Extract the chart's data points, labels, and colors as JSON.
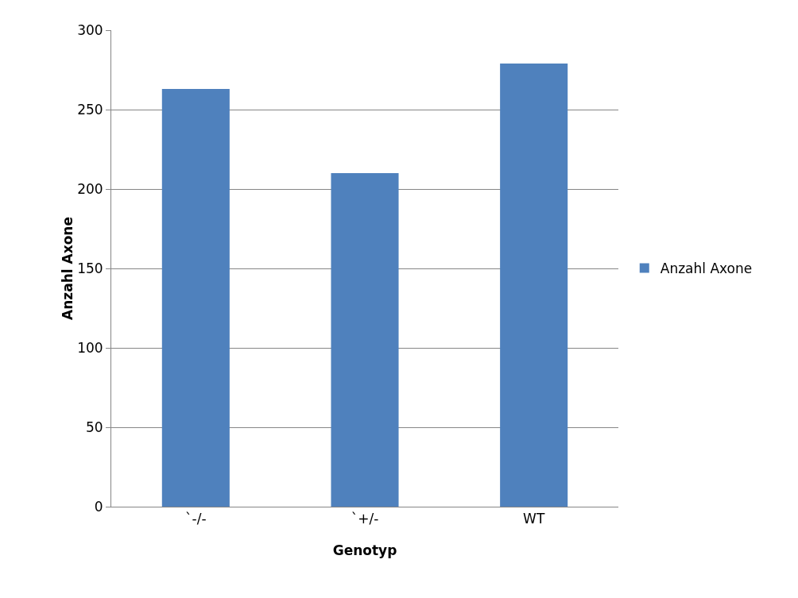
{
  "chart_data": {
    "type": "bar",
    "xlabel": "Genotyp",
    "ylabel": "Anzahl Axone",
    "categories": [
      "`-/-",
      "`+/-",
      "WT"
    ],
    "series": [
      {
        "name": "Anzahl Axone",
        "color": "#4f81bd",
        "values": [
          263,
          210,
          279
        ]
      }
    ],
    "ylim": [
      0,
      300
    ],
    "yticks": [
      0,
      50,
      100,
      150,
      200,
      250,
      300
    ],
    "grid": "y",
    "legend": "right"
  }
}
